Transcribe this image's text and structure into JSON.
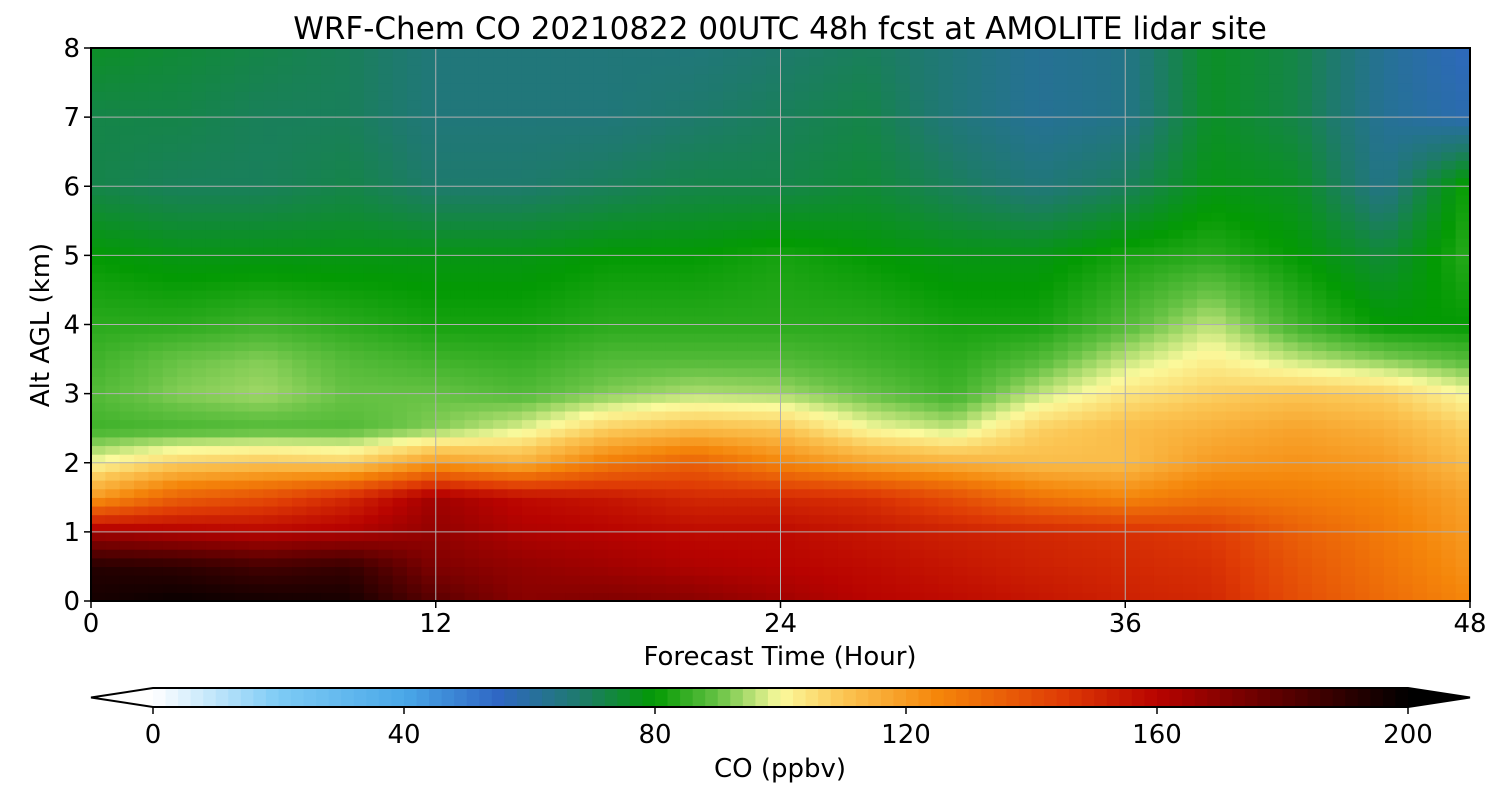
{
  "chart_data": {
    "type": "heatmap",
    "title": "WRF-Chem CO  20210822 00UTC 48h fcst at AMOLITE lidar site",
    "xlabel": "Forecast Time (Hour)",
    "ylabel": "Alt AGL (km)",
    "xlim": [
      0,
      48
    ],
    "ylim": [
      0,
      8
    ],
    "xticks": [
      0,
      12,
      24,
      36,
      48
    ],
    "yticks": [
      0,
      1,
      2,
      3,
      4,
      5,
      6,
      7,
      8
    ],
    "grid": true,
    "colorbar": {
      "label": "CO  (ppbv)",
      "min": 0,
      "max": 200,
      "ticks": [
        0,
        40,
        80,
        120,
        160,
        200
      ],
      "extend": "both",
      "color_stops": [
        {
          "value": 0,
          "color": "#ffffff"
        },
        {
          "value": 20,
          "color": "#7ecbf5"
        },
        {
          "value": 40,
          "color": "#4aa8e8"
        },
        {
          "value": 55,
          "color": "#2f67c4"
        },
        {
          "value": 68,
          "color": "#1e7a6c"
        },
        {
          "value": 80,
          "color": "#039a03"
        },
        {
          "value": 90,
          "color": "#66c244"
        },
        {
          "value": 100,
          "color": "#fbfa9d"
        },
        {
          "value": 110,
          "color": "#fbc553"
        },
        {
          "value": 125,
          "color": "#f5860a"
        },
        {
          "value": 145,
          "color": "#df3b05"
        },
        {
          "value": 160,
          "color": "#b80300"
        },
        {
          "value": 180,
          "color": "#5a0000"
        },
        {
          "value": 200,
          "color": "#000000"
        }
      ]
    },
    "x": [
      0,
      3,
      6,
      9,
      12,
      15,
      18,
      21,
      24,
      27,
      30,
      33,
      36,
      39,
      42,
      45,
      48
    ],
    "y": [
      0,
      0.5,
      1,
      1.5,
      2,
      2.5,
      3,
      3.5,
      4,
      5,
      6,
      7,
      8
    ],
    "z": [
      [
        195,
        198,
        196,
        195,
        180,
        170,
        172,
        170,
        165,
        160,
        158,
        155,
        152,
        150,
        140,
        132,
        125
      ],
      [
        192,
        190,
        185,
        188,
        172,
        168,
        165,
        162,
        160,
        158,
        155,
        152,
        150,
        148,
        138,
        130,
        122
      ],
      [
        165,
        162,
        160,
        162,
        168,
        162,
        160,
        158,
        158,
        155,
        152,
        150,
        148,
        145,
        135,
        128,
        120
      ],
      [
        120,
        135,
        140,
        150,
        165,
        158,
        155,
        150,
        150,
        148,
        140,
        130,
        125,
        130,
        128,
        125,
        118
      ],
      [
        100,
        108,
        110,
        108,
        120,
        115,
        128,
        135,
        125,
        118,
        115,
        112,
        112,
        120,
        122,
        120,
        112
      ],
      [
        86,
        87,
        88,
        88,
        92,
        98,
        108,
        112,
        110,
        100,
        96,
        108,
        112,
        115,
        118,
        115,
        108
      ],
      [
        88,
        92,
        94,
        90,
        90,
        88,
        92,
        95,
        94,
        90,
        86,
        96,
        104,
        108,
        110,
        108,
        100
      ],
      [
        86,
        90,
        92,
        88,
        86,
        85,
        88,
        88,
        88,
        86,
        84,
        88,
        96,
        102,
        96,
        92,
        88
      ],
      [
        84,
        84,
        86,
        84,
        82,
        82,
        84,
        84,
        84,
        84,
        82,
        82,
        88,
        96,
        86,
        80,
        80
      ],
      [
        80,
        78,
        78,
        78,
        78,
        78,
        80,
        80,
        82,
        80,
        78,
        78,
        82,
        84,
        80,
        74,
        84
      ],
      [
        72,
        70,
        70,
        72,
        68,
        68,
        70,
        72,
        72,
        74,
        70,
        66,
        70,
        78,
        76,
        64,
        82
      ],
      [
        72,
        72,
        70,
        70,
        66,
        66,
        66,
        68,
        70,
        72,
        66,
        62,
        64,
        76,
        72,
        62,
        58
      ],
      [
        76,
        74,
        72,
        70,
        66,
        66,
        66,
        66,
        68,
        70,
        66,
        62,
        64,
        76,
        72,
        62,
        56
      ]
    ]
  }
}
